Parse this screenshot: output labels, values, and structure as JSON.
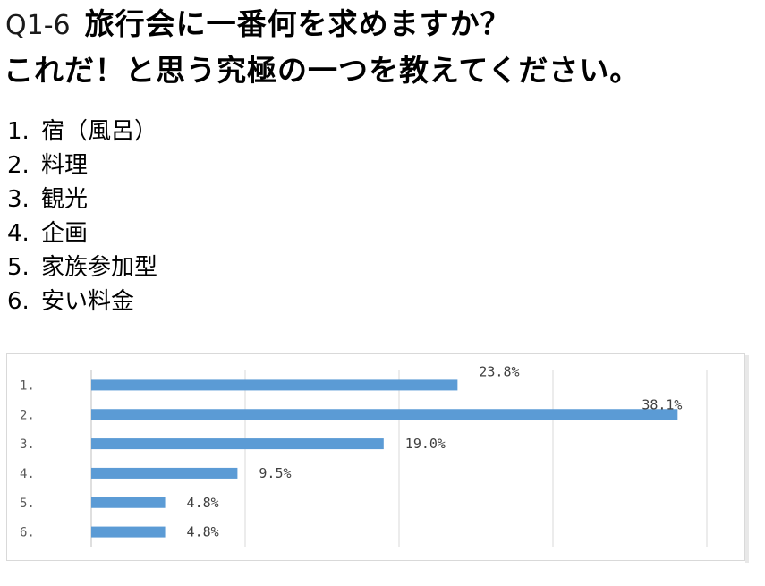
{
  "question": {
    "number": "Q1-6",
    "line1": "旅行会に一番何を求めますか？",
    "line2": "これだ！と思う究極の一つを教えてください。"
  },
  "options": [
    {
      "num": "1.",
      "label": "宿（風呂）"
    },
    {
      "num": "2.",
      "label": "料理"
    },
    {
      "num": "3.",
      "label": "観光"
    },
    {
      "num": "4.",
      "label": "企画"
    },
    {
      "num": "5.",
      "label": "家族参加型"
    },
    {
      "num": "6.",
      "label": "安い料金"
    }
  ],
  "chart_data": {
    "type": "bar",
    "orientation": "horizontal",
    "categories": [
      "1.",
      "2.",
      "3.",
      "4.",
      "5.",
      "6."
    ],
    "values": [
      23.8,
      38.1,
      19.0,
      9.5,
      4.8,
      4.8
    ],
    "data_labels": [
      "23.8%",
      "38.1%",
      "19.0%",
      "9.5%",
      "4.8%",
      "4.8%"
    ],
    "xlim": [
      0,
      40
    ],
    "grid": true,
    "bar_color": "#5b9bd5",
    "title": "",
    "xlabel": "",
    "ylabel": ""
  }
}
